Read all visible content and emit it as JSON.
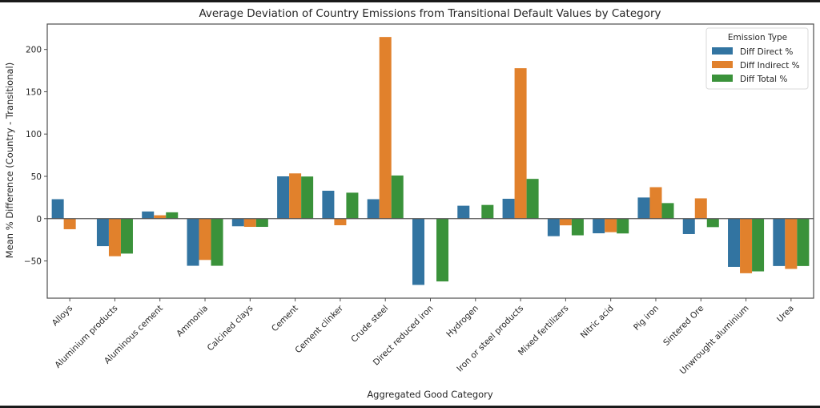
{
  "chart_data": {
    "type": "bar",
    "title": "Average Deviation of Country Emissions from Transitional Default Values by Category",
    "xlabel": "Aggregated Good Category",
    "ylabel": "Mean % Difference (Country - Transitional)",
    "ylim": [
      -94,
      230
    ],
    "yticks": [
      -50,
      0,
      50,
      100,
      150,
      200
    ],
    "grid": false,
    "legend": {
      "title": "Emission Type",
      "placement": "top-right"
    },
    "categories": [
      "Alloys",
      "Aluminium products",
      "Aluminous cement",
      "Ammonia",
      "Calcined clays",
      "Cement",
      "Cement clinker",
      "Crude steel",
      "Direct reduced iron",
      "Hydrogen",
      "Iron or steel products",
      "Mixed fertilizers",
      "Nitric acid",
      "Pig iron",
      "Sintered Ore",
      "Unwrought aluminium",
      "Urea"
    ],
    "series": [
      {
        "name": "Diff Direct %",
        "color": "#3274a1",
        "values": [
          23,
          -32.5,
          8.5,
          -55.7,
          -9,
          50,
          33,
          23,
          -78.3,
          15.3,
          23.5,
          -20.7,
          -17.3,
          25,
          -18.2,
          -57,
          -56
        ]
      },
      {
        "name": "Diff Indirect %",
        "color": "#e1812c",
        "values": [
          -12.5,
          -44.4,
          4,
          -48.8,
          -9.7,
          53.5,
          -7.8,
          214.7,
          null,
          null,
          177.8,
          -7.9,
          -16,
          37.2,
          24,
          -64.5,
          -59.4
        ]
      },
      {
        "name": "Diff Total %",
        "color": "#3a923a",
        "values": [
          null,
          -41.3,
          7.5,
          -55.7,
          -9.7,
          49.8,
          30.7,
          51,
          -74.2,
          16.2,
          47,
          -19.7,
          -17.5,
          18.4,
          -10,
          -62.3,
          -56
        ]
      }
    ]
  }
}
